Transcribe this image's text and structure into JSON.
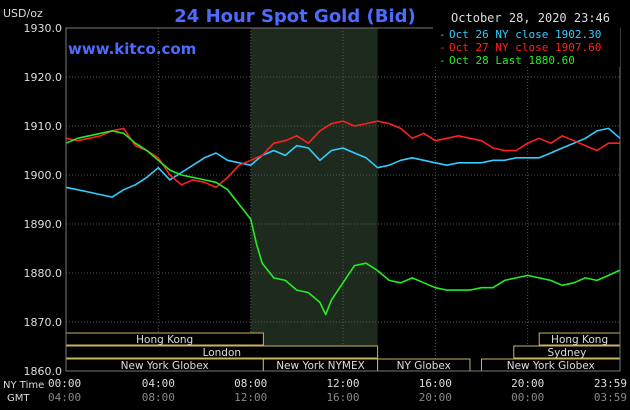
{
  "chart_data": {
    "type": "line",
    "title": "24 Hour Spot Gold (Bid)",
    "site": "www.kitco.com",
    "date_stamp": "October 28, 2020 23:46",
    "y_unit_label": "USD/oz",
    "ylim": [
      1860,
      1930
    ],
    "y_ticks": [
      "1930.0",
      "1920.0",
      "1910.0",
      "1900.0",
      "1890.0",
      "1880.0",
      "1870.0",
      "1860.0"
    ],
    "x_row1_label": "NY Time",
    "x_row2_label": "GMT",
    "x_ticks_ny": [
      "00:00",
      "04:00",
      "08:00",
      "12:00",
      "16:00",
      "20:00",
      "23:59"
    ],
    "x_ticks_gmt": [
      "04:00",
      "08:00",
      "12:00",
      "16:00",
      "20:00",
      "00:00",
      "03:59"
    ],
    "shaded_session_hours": [
      8.0,
      13.5
    ],
    "grid": true,
    "legend_position": "top-right",
    "series": [
      {
        "name": "Oct 26 NY close 1902.30",
        "color": "#33ccff",
        "x": [
          0,
          0.5,
          1,
          1.5,
          2,
          2.5,
          3,
          3.5,
          4,
          4.5,
          5,
          5.5,
          6,
          6.5,
          7,
          7.5,
          8,
          8.5,
          9,
          9.5,
          10,
          10.5,
          11,
          11.5,
          12,
          12.5,
          13,
          13.5,
          14,
          14.5,
          15,
          15.5,
          16,
          16.5,
          17,
          17.5,
          18,
          18.5,
          19,
          19.5,
          20,
          20.5,
          21,
          21.5,
          22,
          22.5,
          23,
          23.5,
          24
        ],
        "values": [
          1897.5,
          1897.0,
          1896.5,
          1896.0,
          1895.5,
          1897.0,
          1898.0,
          1899.5,
          1901.5,
          1899.0,
          1900.5,
          1902.0,
          1903.5,
          1904.5,
          1903.0,
          1902.5,
          1902.0,
          1904.0,
          1905.0,
          1904.0,
          1906.0,
          1905.5,
          1903.0,
          1905.0,
          1905.5,
          1904.5,
          1903.5,
          1901.5,
          1902.0,
          1903.0,
          1903.5,
          1903.0,
          1902.5,
          1902.0,
          1902.5,
          1902.5,
          1902.5,
          1903.0,
          1903.0,
          1903.5,
          1903.5,
          1903.5,
          1904.5,
          1905.5,
          1906.5,
          1907.5,
          1909.0,
          1909.5,
          1907.5
        ]
      },
      {
        "name": "Oct 27 NY close 1907.60",
        "color": "#ff2020",
        "x": [
          0,
          0.5,
          1,
          1.5,
          2,
          2.5,
          3,
          3.5,
          4,
          4.5,
          5,
          5.5,
          6,
          6.5,
          7,
          7.5,
          8,
          8.5,
          9,
          9.5,
          10,
          10.5,
          11,
          11.5,
          12,
          12.5,
          13,
          13.5,
          14,
          14.5,
          15,
          15.5,
          16,
          16.5,
          17,
          17.5,
          18,
          18.5,
          19,
          19.5,
          20,
          20.5,
          21,
          21.5,
          22,
          22.5,
          23,
          23.5,
          24
        ],
        "values": [
          1907.5,
          1907.0,
          1907.5,
          1908.0,
          1909.0,
          1909.5,
          1906.0,
          1905.0,
          1903.5,
          1900.0,
          1898.0,
          1899.0,
          1898.5,
          1897.5,
          1899.5,
          1902.0,
          1903.0,
          1904.0,
          1906.5,
          1907.0,
          1908.0,
          1906.5,
          1909.0,
          1910.5,
          1911.0,
          1910.0,
          1910.5,
          1911.0,
          1910.5,
          1909.5,
          1907.5,
          1908.5,
          1907.0,
          1907.5,
          1908.0,
          1907.5,
          1907.0,
          1905.5,
          1905.0,
          1905.0,
          1906.5,
          1907.5,
          1906.5,
          1908.0,
          1907.0,
          1906.0,
          1905.0,
          1906.5,
          1906.5
        ]
      },
      {
        "name": "Oct 28 Last 1880.60",
        "color": "#22ee22",
        "x": [
          0,
          0.5,
          1,
          1.5,
          2,
          2.5,
          3,
          3.5,
          4,
          4.5,
          5,
          5.5,
          6,
          6.5,
          7,
          7.5,
          8,
          8.25,
          8.5,
          9,
          9.5,
          10,
          10.5,
          11,
          11.25,
          11.5,
          12,
          12.5,
          13,
          13.5,
          14,
          14.5,
          15,
          15.5,
          16,
          16.5,
          17,
          17.5,
          18,
          18.5,
          19,
          19.5,
          20,
          20.5,
          21,
          21.5,
          22,
          22.5,
          23,
          23.5,
          24
        ],
        "values": [
          1906.5,
          1907.5,
          1908.0,
          1908.5,
          1909.0,
          1908.5,
          1906.5,
          1905.0,
          1903.0,
          1901.0,
          1900.0,
          1899.5,
          1899.0,
          1898.5,
          1897.0,
          1894.0,
          1891.0,
          1886.0,
          1882.0,
          1879.0,
          1878.5,
          1876.5,
          1876.0,
          1874.0,
          1871.5,
          1874.5,
          1878.0,
          1881.5,
          1882.0,
          1880.5,
          1878.5,
          1878.0,
          1879.0,
          1878.0,
          1877.0,
          1876.5,
          1876.5,
          1876.5,
          1877.0,
          1877.0,
          1878.5,
          1879.0,
          1879.5,
          1879.0,
          1878.5,
          1877.5,
          1878.0,
          1879.0,
          1878.5,
          1879.5,
          1880.6
        ]
      }
    ],
    "sessions": [
      {
        "name": "Hong Kong",
        "row": 1,
        "start": 0.0,
        "end": 8.55
      },
      {
        "name": "London",
        "row": 2,
        "start": 0.0,
        "end": 13.5
      },
      {
        "name": "New York Globex",
        "row": 3,
        "start": 0.0,
        "end": 8.55
      },
      {
        "name": "New York NYMEX",
        "row": 3,
        "start": 8.55,
        "end": 13.5
      },
      {
        "name": "NY Globex",
        "row": 3,
        "start": 13.5,
        "end": 17.5
      },
      {
        "name": "Hong Kong",
        "row": 1,
        "start": 20.5,
        "end": 24.0
      },
      {
        "name": "Sydney",
        "row": 2,
        "start": 19.4,
        "end": 24.0
      },
      {
        "name": "New York Globex",
        "row": 3,
        "start": 18.0,
        "end": 24.0
      }
    ]
  }
}
